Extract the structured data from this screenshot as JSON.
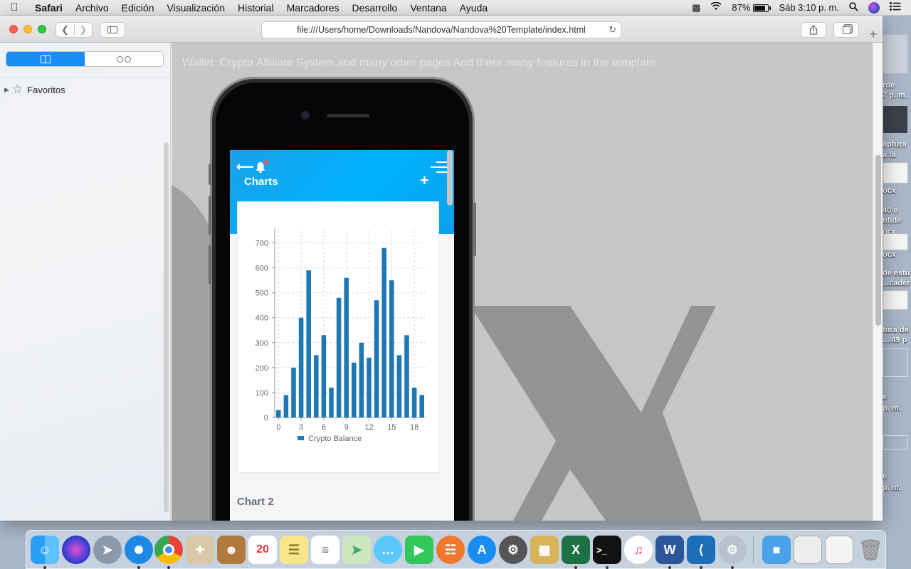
{
  "menubar": {
    "items": [
      "Safari",
      "Archivo",
      "Edición",
      "Visualización",
      "Historial",
      "Marcadores",
      "Desarrollo",
      "Ventana",
      "Ayuda"
    ],
    "battery": "87%",
    "battery_level_percent": 87,
    "clock": "Sáb 3:10 p. m."
  },
  "browser": {
    "url": "file:///Users/home/Downloads/Nandova/Nandova%20Template/index.html",
    "sidebar": {
      "favorites_label": "Favoritos"
    }
  },
  "page": {
    "intro_text": "Wallet ,Crypto Affiliate System and many other pages And there many features in the template",
    "app": {
      "title": "Charts",
      "section2_title": "Chart 2"
    }
  },
  "chart_data": {
    "type": "bar",
    "x": [
      0,
      1,
      2,
      3,
      4,
      5,
      6,
      7,
      8,
      9,
      10,
      11,
      12,
      13,
      14,
      15,
      16,
      17,
      18,
      19
    ],
    "series": [
      {
        "name": "Crypto Balance",
        "values": [
          30,
          90,
          200,
          400,
          590,
          250,
          330,
          120,
          480,
          560,
          220,
          300,
          240,
          470,
          680,
          550,
          250,
          330,
          120,
          90
        ],
        "color": "#1f77b4"
      }
    ],
    "x_ticks": [
      "0",
      "3",
      "6",
      "9",
      "12",
      "15",
      "18"
    ],
    "y_ticks": [
      "0",
      "100",
      "200",
      "300",
      "400",
      "500",
      "600",
      "700"
    ],
    "ylim": [
      0,
      750
    ],
    "xlim": [
      -0.5,
      19.5
    ],
    "grid": true,
    "legend_position": "bottom"
  },
  "desktop": {
    "labels": [
      "rde",
      "7 p. m.",
      "aptura",
      "a la",
      "ocx",
      "40 e",
      "nfide",
      "ocx",
      "ocx",
      "de estu",
      "...cadér",
      "tura de",
      "....49 p",
      "e",
      "p. m.",
      "e",
      "p. m."
    ]
  },
  "colors": {
    "accent": "#1b8cf6",
    "app_header": "#00b2ff",
    "bar": "#1f77b4"
  }
}
